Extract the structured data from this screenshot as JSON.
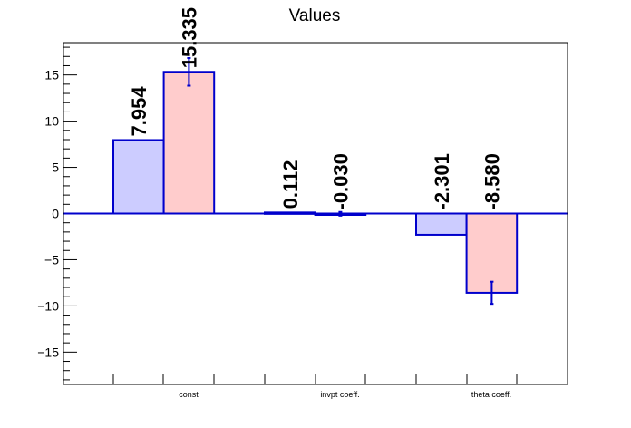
{
  "chart_data": {
    "type": "bar",
    "title": "Values",
    "categories": [
      "const",
      "invpt coeff.",
      "theta coeff."
    ],
    "series": [
      {
        "values": [
          7.954,
          0.112,
          -2.301
        ],
        "labels": [
          "7.954",
          "0.112",
          "-2.301"
        ],
        "errors": [
          0,
          0,
          0
        ],
        "fill": "#ccccff",
        "stroke": "#0000cc"
      },
      {
        "values": [
          15.335,
          -0.03,
          -8.58
        ],
        "labels": [
          "15.335",
          "-0.030",
          "-8.580"
        ],
        "errors": [
          1.5,
          0.2,
          1.2
        ],
        "fill": "#ffcccc",
        "stroke": "#0000cc"
      }
    ],
    "ylim": [
      -18.5,
      18.5
    ],
    "yticks": [
      -15,
      -10,
      -5,
      0,
      5,
      10,
      15
    ],
    "ytick_labels": [
      "−15",
      "−10",
      "−5",
      "0",
      "5",
      "10",
      "15"
    ],
    "xlabel": "",
    "ylabel": "",
    "grid": false,
    "legend": "none"
  }
}
